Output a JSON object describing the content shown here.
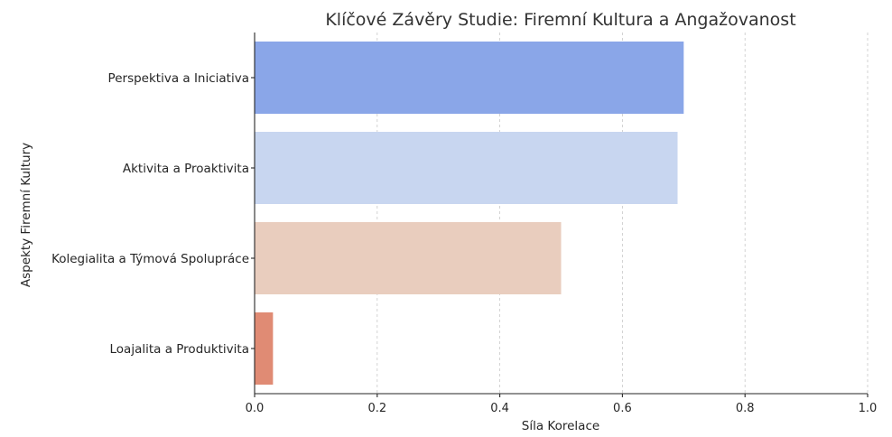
{
  "chart_data": {
    "type": "bar",
    "orientation": "horizontal",
    "title": "Klíčové Závěry Studie: Firemní Kultura a Angažovanost",
    "xlabel": "Síla Korelace",
    "ylabel": "Aspekty Firemní Kultury",
    "xlim": [
      0,
      1.0
    ],
    "xticks": [
      "0.0",
      "0.2",
      "0.4",
      "0.6",
      "0.8",
      "1.0"
    ],
    "grid": "x, dashed",
    "categories": [
      "Perspektiva a Iniciativa",
      "Aktivita a Proaktivita",
      "Kolegialita a Týmová Spolupráce",
      "Loajalita a Produktivita"
    ],
    "values": [
      0.7,
      0.69,
      0.5,
      0.03
    ],
    "colors": [
      "#8aa6e8",
      "#c8d6f0",
      "#e9cdbe",
      "#e08b74"
    ]
  }
}
